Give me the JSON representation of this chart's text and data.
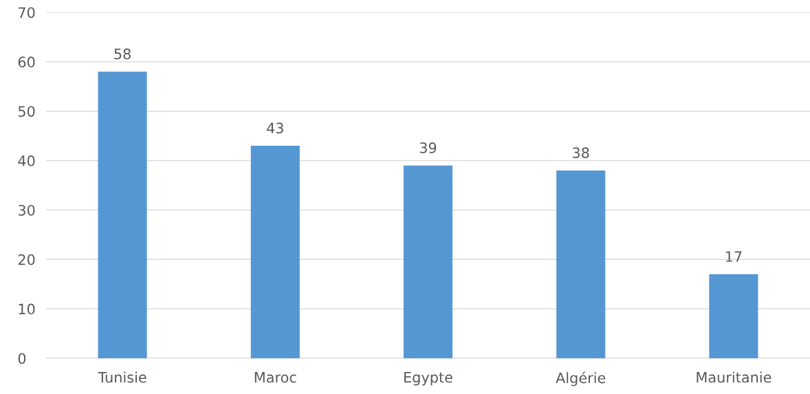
{
  "chart_data": {
    "type": "bar",
    "categories": [
      "Tunisie",
      "Maroc",
      "Egypte",
      "Algérie",
      "Mauritanie"
    ],
    "values": [
      58,
      43,
      39,
      38,
      17
    ],
    "color": "#5597d3",
    "ylim": [
      0,
      70
    ],
    "yticks": [
      0,
      10,
      20,
      30,
      40,
      50,
      60,
      70
    ],
    "grid": "y",
    "data_labels": true
  }
}
